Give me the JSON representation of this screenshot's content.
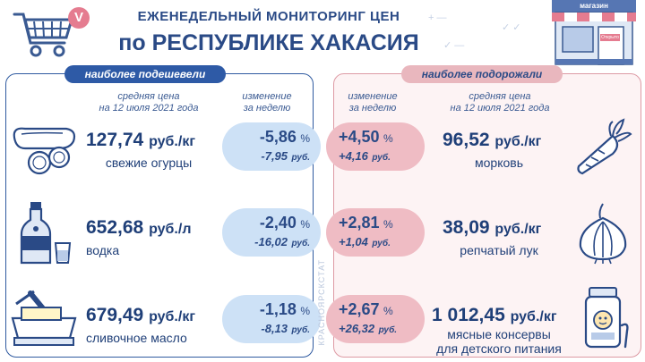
{
  "header": {
    "title_line1": "ЕЖЕНЕДЕЛЬНЫЙ МОНИТОРИНГ ЦЕН",
    "title_line2": "по РЕСПУБЛИКЕ ХАКАСИЯ",
    "logo_letter": "V",
    "shop_sign": "магазин",
    "shop_door_sign": "Открыто"
  },
  "left_panel": {
    "label": "наиболее подешевели",
    "col_price_header": "средняя цена\nна 12 июля 2021 года",
    "col_change_header": "изменение\nза неделю",
    "items": [
      {
        "icon": "cucumber-icon",
        "price": "127,74",
        "unit": "руб./кг",
        "name": "свежие огурцы",
        "pct": "-5,86",
        "pct_sign": "%",
        "rub": "-7,95",
        "rub_unit": "руб."
      },
      {
        "icon": "vodka-bottle-icon",
        "price": "652,68",
        "unit": "руб./л",
        "name": "водка",
        "pct": "-2,40",
        "pct_sign": "%",
        "rub": "-16,02",
        "rub_unit": "руб."
      },
      {
        "icon": "butter-icon",
        "price": "679,49",
        "unit": "руб./кг",
        "name": "сливочное масло",
        "pct": "-1,18",
        "pct_sign": "%",
        "rub": "-8,13",
        "rub_unit": "руб."
      }
    ]
  },
  "right_panel": {
    "label": "наиболее подорожали",
    "col_change_header": "изменение\nза неделю",
    "col_price_header": "средняя цена\nна 12 июля 2021 года",
    "items": [
      {
        "icon": "carrot-icon",
        "price": "96,52",
        "unit": "руб./кг",
        "name": "морковь",
        "pct": "+4,50",
        "pct_sign": "%",
        "rub": "+4,16",
        "rub_unit": "руб."
      },
      {
        "icon": "onion-icon",
        "price": "38,09",
        "unit": "руб./кг",
        "name": "репчатый лук",
        "pct": "+2,81",
        "pct_sign": "%",
        "rub": "+1,04",
        "rub_unit": "руб."
      },
      {
        "icon": "baby-food-jar-icon",
        "price": "1 012,45",
        "unit": "руб./кг",
        "name": "мясные консервы\nдля детского питания",
        "pct": "+2,67",
        "pct_sign": "%",
        "rub": "+26,32",
        "rub_unit": "руб."
      }
    ]
  },
  "watermark": "КРАСНОЯРСКСТАТ",
  "colors": {
    "down_accent": "#2e5aa6",
    "down_bubble": "#cde1f6",
    "up_accent": "#e9b7be",
    "up_bubble": "#efbcc4",
    "text": "#1f3f78"
  }
}
